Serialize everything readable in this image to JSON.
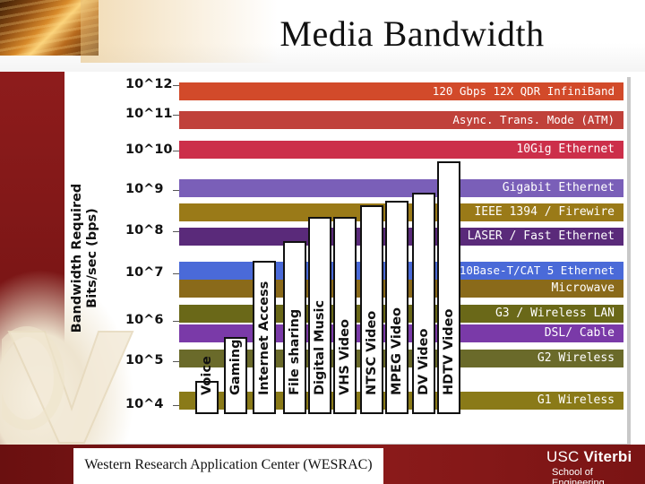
{
  "slide": {
    "title": "Media Bandwidth",
    "footer": "Western Research Application Center (WESRAC)",
    "logo": {
      "line1_a": "USC",
      "line1_b": "Viterbi",
      "line2": "School of Engineering"
    }
  },
  "chart_data": {
    "type": "bar",
    "title": "Media Bandwidth",
    "ylabel": "Bandwidth Required Bits/sec (bps)",
    "ylabel_lines": [
      "Bandwidth Required",
      "Bits/sec (bps)"
    ],
    "y_scale": "log",
    "y_ticks": [
      "10^12",
      "10^11",
      "10^10",
      "10^9",
      "10^8",
      "10^7",
      "10^6",
      "10^5",
      "10^4"
    ],
    "technologies": [
      {
        "name": "120 Gbps 12X QDR InfiniBand",
        "color": "#d24a2a"
      },
      {
        "name": "Async. Trans. Mode (ATM)",
        "color": "#c0413a"
      },
      {
        "name": "10Gig Ethernet",
        "color": "#cc2f4a"
      },
      {
        "name": "Gigabit Ethernet",
        "color": "#7a5fb8"
      },
      {
        "name": "IEEE 1394 / Firewire",
        "color": "#9a7a18"
      },
      {
        "name": "LASER / Fast Ethernet",
        "color": "#5a2a7a"
      },
      {
        "name": "10Base-T/CAT 5 Ethernet",
        "color": "#4a6ad8"
      },
      {
        "name": "Microwave",
        "color": "#8a6a1a"
      },
      {
        "name": "G3 / Wireless LAN",
        "color": "#6a6818"
      },
      {
        "name": "DSL/ Cable",
        "color": "#7a3aa8"
      },
      {
        "name": "G2 Wireless",
        "color": "#6a6a2a"
      },
      {
        "name": "G1 Wireless",
        "color": "#8a7a18"
      }
    ],
    "applications": [
      {
        "name": "Voice",
        "approx_exponent": 4.6
      },
      {
        "name": "Gaming",
        "approx_exponent": 5.7
      },
      {
        "name": "Internet Access",
        "approx_exponent": 7.6
      },
      {
        "name": "File sharing",
        "approx_exponent": 8.1
      },
      {
        "name": "Digital Music",
        "approx_exponent": 8.7
      },
      {
        "name": "VHS Video",
        "approx_exponent": 8.7
      },
      {
        "name": "NTSC Video",
        "approx_exponent": 9.0
      },
      {
        "name": "MPEG Video",
        "approx_exponent": 9.1
      },
      {
        "name": "DV Video",
        "approx_exponent": 9.3
      },
      {
        "name": "HDTV Video",
        "approx_exponent": 10.1
      }
    ]
  }
}
